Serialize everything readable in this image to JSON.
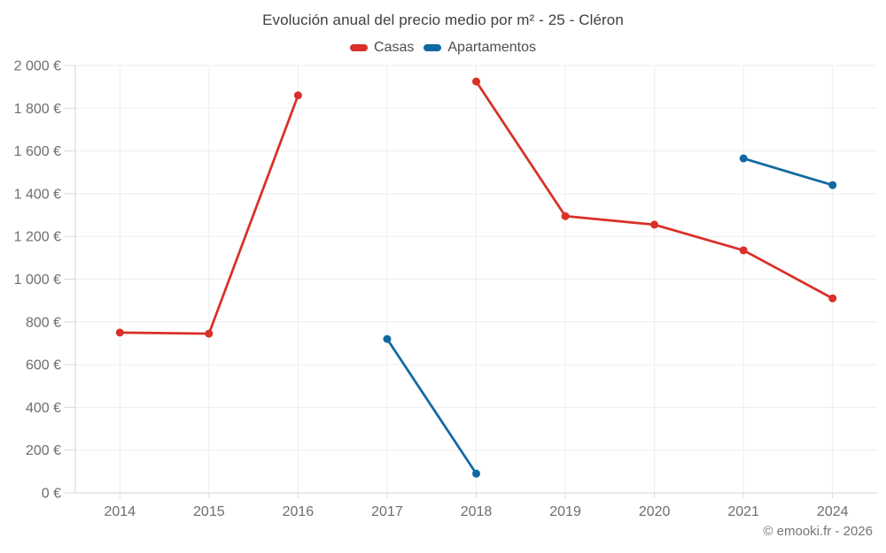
{
  "chart_data": {
    "type": "line",
    "title": "Evolución anual del precio medio por m² - 25 - Cléron",
    "xlabel": "",
    "ylabel": "",
    "categories": [
      "2014",
      "2015",
      "2016",
      "2017",
      "2018",
      "2019",
      "2020",
      "2021",
      "2024"
    ],
    "series": [
      {
        "name": "Casas",
        "color": "#d93029",
        "values": [
          750,
          745,
          1860,
          null,
          1925,
          1295,
          1255,
          1135,
          910
        ]
      },
      {
        "name": "Apartamentos",
        "color": "#1169a2",
        "values": [
          null,
          null,
          null,
          720,
          90,
          null,
          null,
          1565,
          1440
        ]
      }
    ],
    "ylim": [
      0,
      2000
    ],
    "y_tick_step": 200,
    "y_tick_labels": [
      "0 €",
      "200 €",
      "400 €",
      "600 €",
      "800 €",
      "1 000 €",
      "1 200 €",
      "1 400 €",
      "1 600 €",
      "1 800 €",
      "2 000 €"
    ],
    "grid": true,
    "legend_position": "top"
  },
  "footer": {
    "text": "© emooki.fr - 2026"
  },
  "colors": {
    "grid": "#ededed",
    "axis": "#d6d6d6",
    "tick": "#d9d9d9",
    "axis_label": "#6e6e6e",
    "title_text": "#3f3f3f",
    "legend_text": "#4d4d4d",
    "footer_text": "#757575"
  }
}
